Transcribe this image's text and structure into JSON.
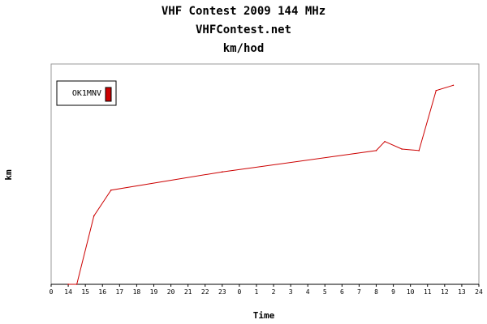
{
  "chart_data": {
    "type": "line",
    "title": "VHF Contest 2009 144 MHz",
    "subtitle": "VHFContest.net",
    "unit_title": "km/hod",
    "xlabel": "Time",
    "ylabel": "km",
    "x_tick_labels": [
      "0",
      "14",
      "15",
      "16",
      "17",
      "18",
      "19",
      "20",
      "21",
      "22",
      "23",
      "0",
      "1",
      "2",
      "3",
      "4",
      "5",
      "6",
      "7",
      "8",
      "9",
      "10",
      "11",
      "12",
      "13",
      "24"
    ],
    "series": [
      {
        "name": "OK1MNV",
        "color": "#cc0000",
        "x": [
          0,
          14.0,
          14.5,
          15.5,
          16.5,
          23,
          8,
          8.5,
          9.5,
          10.5,
          11.5,
          12.5
        ],
        "values": [
          0,
          0,
          0,
          90,
          124,
          148,
          176,
          188,
          178,
          176,
          255,
          262
        ]
      }
    ],
    "ylim": [
      0,
      290
    ],
    "grid": false,
    "legend_position": "top-left"
  }
}
